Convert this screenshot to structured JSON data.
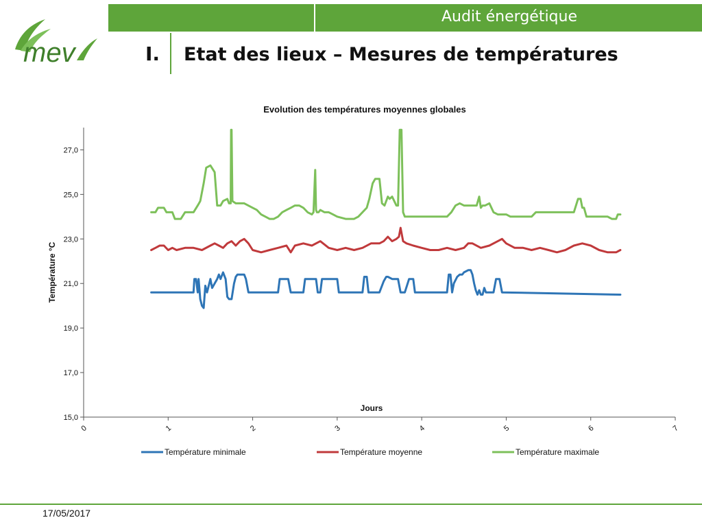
{
  "header": {
    "section": "Audit énergétique",
    "roman": "I.",
    "title": "Etat des lieux – Mesures de températures"
  },
  "logo": {
    "text": "mev"
  },
  "footer": {
    "date": "17/05/2017"
  },
  "colors": {
    "brand_green": "#5ea53a",
    "min": "#2e75b6",
    "mean": "#c0393b",
    "max": "#7dc05a"
  },
  "chart_data": {
    "type": "line",
    "title": "Evolution des températures moyennes globales",
    "xlabel": "Jours",
    "ylabel": "Température °C",
    "xlim": [
      0,
      7
    ],
    "ylim": [
      15,
      28
    ],
    "xticks": [
      0,
      1,
      2,
      3,
      4,
      5,
      6,
      7
    ],
    "xtick_labels": [
      "0",
      "1",
      "2",
      "3",
      "4",
      "5",
      "6",
      "7"
    ],
    "yticks": [
      15,
      17,
      19,
      21,
      23,
      25,
      27
    ],
    "ytick_labels": [
      "15,0",
      "17,0",
      "19,0",
      "21,0",
      "23,0",
      "25,0",
      "27,0"
    ],
    "legend_position": "bottom",
    "grid": false,
    "series": [
      {
        "name": "Température minimale",
        "color": "#2e75b6",
        "x": [
          0.8,
          1.3,
          1.31,
          1.33,
          1.35,
          1.36,
          1.38,
          1.4,
          1.42,
          1.44,
          1.46,
          1.5,
          1.52,
          1.55,
          1.58,
          1.6,
          1.62,
          1.65,
          1.68,
          1.7,
          1.72,
          1.75,
          1.78,
          1.8,
          1.82,
          1.85,
          1.9,
          1.92,
          1.95,
          2.0,
          2.02,
          2.3,
          2.32,
          2.35,
          2.37,
          2.4,
          2.42,
          2.45,
          2.6,
          2.62,
          2.75,
          2.77,
          2.8,
          2.82,
          2.95,
          3.0,
          3.02,
          3.3,
          3.32,
          3.35,
          3.37,
          3.4,
          3.5,
          3.55,
          3.58,
          3.6,
          3.65,
          3.68,
          3.7,
          3.72,
          3.75,
          3.8,
          3.85,
          3.88,
          3.9,
          3.92,
          3.95,
          4.3,
          4.32,
          4.34,
          4.36,
          4.38,
          4.42,
          4.45,
          4.48,
          4.5,
          4.55,
          4.58,
          4.6,
          4.62,
          4.64,
          4.66,
          4.68,
          4.7,
          4.72,
          4.74,
          4.76,
          4.8,
          4.85,
          4.88,
          4.9,
          4.92,
          4.95,
          6.35
        ],
        "values": [
          20.6,
          20.6,
          21.2,
          21.2,
          20.6,
          21.2,
          20.3,
          20.0,
          19.9,
          20.9,
          20.6,
          21.2,
          20.8,
          21.0,
          21.2,
          21.4,
          21.2,
          21.5,
          21.2,
          20.4,
          20.3,
          20.3,
          21.0,
          21.3,
          21.4,
          21.4,
          21.4,
          21.2,
          20.6,
          20.6,
          20.6,
          20.6,
          21.2,
          21.2,
          21.2,
          21.2,
          21.2,
          20.6,
          20.6,
          21.2,
          21.2,
          20.6,
          20.6,
          21.2,
          21.2,
          21.2,
          20.6,
          20.6,
          21.3,
          21.3,
          20.6,
          20.6,
          20.6,
          21.1,
          21.3,
          21.3,
          21.2,
          21.2,
          21.2,
          21.2,
          20.6,
          20.6,
          21.2,
          21.2,
          21.2,
          20.6,
          20.6,
          20.6,
          21.4,
          21.4,
          20.6,
          21.0,
          21.3,
          21.4,
          21.4,
          21.5,
          21.6,
          21.6,
          21.4,
          21.0,
          20.7,
          20.5,
          20.7,
          20.5,
          20.5,
          20.8,
          20.6,
          20.6,
          20.6,
          21.2,
          21.2,
          21.2,
          20.6,
          20.5
        ]
      },
      {
        "name": "Température moyenne",
        "color": "#c0393b",
        "x": [
          0.8,
          0.85,
          0.9,
          0.95,
          1.0,
          1.05,
          1.1,
          1.2,
          1.3,
          1.4,
          1.5,
          1.55,
          1.6,
          1.65,
          1.7,
          1.75,
          1.8,
          1.85,
          1.9,
          1.95,
          2.0,
          2.1,
          2.2,
          2.3,
          2.4,
          2.45,
          2.5,
          2.6,
          2.7,
          2.8,
          2.9,
          3.0,
          3.1,
          3.2,
          3.3,
          3.4,
          3.5,
          3.55,
          3.6,
          3.65,
          3.7,
          3.73,
          3.75,
          3.78,
          3.82,
          3.9,
          4.0,
          4.1,
          4.2,
          4.3,
          4.4,
          4.5,
          4.55,
          4.6,
          4.7,
          4.8,
          4.9,
          4.95,
          5.0,
          5.1,
          5.2,
          5.3,
          5.4,
          5.5,
          5.6,
          5.7,
          5.8,
          5.9,
          6.0,
          6.1,
          6.2,
          6.3,
          6.35
        ],
        "values": [
          22.5,
          22.6,
          22.7,
          22.7,
          22.5,
          22.6,
          22.5,
          22.6,
          22.6,
          22.5,
          22.7,
          22.8,
          22.7,
          22.6,
          22.8,
          22.9,
          22.7,
          22.9,
          23.0,
          22.8,
          22.5,
          22.4,
          22.5,
          22.6,
          22.7,
          22.4,
          22.7,
          22.8,
          22.7,
          22.9,
          22.6,
          22.5,
          22.6,
          22.5,
          22.6,
          22.8,
          22.8,
          22.9,
          23.1,
          22.9,
          23.0,
          23.1,
          23.5,
          22.9,
          22.8,
          22.7,
          22.6,
          22.5,
          22.5,
          22.6,
          22.5,
          22.6,
          22.8,
          22.8,
          22.6,
          22.7,
          22.9,
          23.0,
          22.8,
          22.6,
          22.6,
          22.5,
          22.6,
          22.5,
          22.4,
          22.5,
          22.7,
          22.8,
          22.7,
          22.5,
          22.4,
          22.4,
          22.5
        ]
      },
      {
        "name": "Température maximale",
        "color": "#7dc05a",
        "x": [
          0.8,
          0.85,
          0.88,
          0.95,
          0.98,
          1.05,
          1.08,
          1.15,
          1.2,
          1.3,
          1.35,
          1.38,
          1.42,
          1.45,
          1.5,
          1.55,
          1.58,
          1.62,
          1.65,
          1.7,
          1.72,
          1.74,
          1.745,
          1.75,
          1.76,
          1.8,
          1.9,
          2.0,
          2.05,
          2.1,
          2.15,
          2.2,
          2.25,
          2.3,
          2.35,
          2.4,
          2.45,
          2.5,
          2.55,
          2.6,
          2.65,
          2.7,
          2.72,
          2.74,
          2.75,
          2.76,
          2.78,
          2.8,
          2.85,
          2.9,
          2.95,
          3.0,
          3.1,
          3.2,
          3.25,
          3.3,
          3.35,
          3.38,
          3.42,
          3.45,
          3.5,
          3.53,
          3.56,
          3.6,
          3.62,
          3.65,
          3.7,
          3.72,
          3.74,
          3.745,
          3.75,
          3.76,
          3.78,
          3.8,
          3.82,
          4.0,
          4.1,
          4.2,
          4.3,
          4.35,
          4.4,
          4.45,
          4.5,
          4.6,
          4.65,
          4.68,
          4.7,
          4.72,
          4.75,
          4.8,
          4.85,
          4.9,
          5.0,
          5.05,
          5.1,
          5.3,
          5.35,
          5.4,
          5.5,
          5.6,
          5.7,
          5.8,
          5.85,
          5.88,
          5.9,
          5.92,
          5.95,
          6.0,
          6.2,
          6.25,
          6.3,
          6.32,
          6.35
        ],
        "values": [
          24.2,
          24.2,
          24.4,
          24.4,
          24.2,
          24.2,
          23.9,
          23.9,
          24.2,
          24.2,
          24.5,
          24.7,
          25.5,
          26.2,
          26.3,
          26.0,
          24.5,
          24.5,
          24.7,
          24.8,
          24.6,
          24.6,
          27.9,
          27.9,
          24.7,
          24.6,
          24.6,
          24.4,
          24.3,
          24.1,
          24.0,
          23.9,
          23.9,
          24.0,
          24.2,
          24.3,
          24.4,
          24.5,
          24.5,
          24.4,
          24.2,
          24.1,
          24.2,
          26.1,
          24.3,
          24.2,
          24.2,
          24.3,
          24.2,
          24.2,
          24.1,
          24.0,
          23.9,
          23.9,
          24.0,
          24.2,
          24.4,
          24.8,
          25.5,
          25.7,
          25.7,
          24.6,
          24.5,
          24.9,
          24.8,
          24.9,
          24.5,
          24.5,
          27.9,
          27.9,
          27.9,
          27.9,
          24.2,
          24.0,
          24.0,
          24.0,
          24.0,
          24.0,
          24.0,
          24.2,
          24.5,
          24.6,
          24.5,
          24.5,
          24.5,
          24.9,
          24.4,
          24.5,
          24.5,
          24.6,
          24.2,
          24.1,
          24.1,
          24.0,
          24.0,
          24.0,
          24.2,
          24.2,
          24.2,
          24.2,
          24.2,
          24.2,
          24.8,
          24.8,
          24.4,
          24.4,
          24.0,
          24.0,
          24.0,
          23.9,
          23.9,
          24.1,
          24.1
        ]
      }
    ]
  }
}
